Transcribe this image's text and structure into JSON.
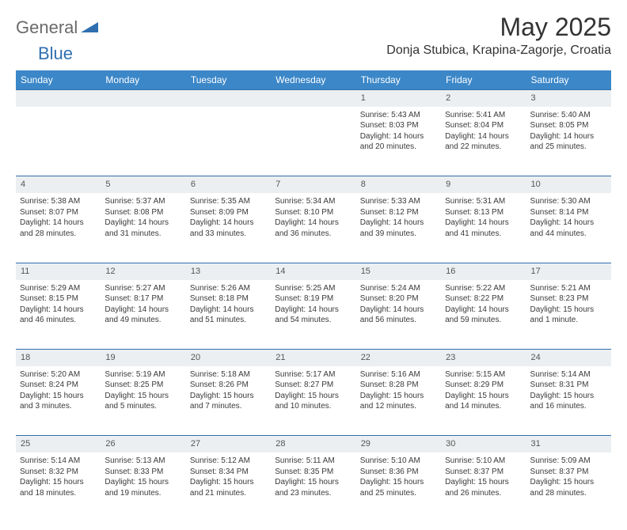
{
  "logo": {
    "textGray": "General",
    "textBlue": "Blue"
  },
  "title": "May 2025",
  "location": "Donja Stubica, Krapina-Zagorje, Croatia",
  "colors": {
    "header_bg": "#3b87c8",
    "header_text": "#ffffff",
    "daynum_bg": "#eceff1",
    "daynum_border": "#2f6fb0",
    "body_text": "#3a3a3a",
    "logo_gray": "#6a6a6a",
    "logo_blue": "#2f6fb0"
  },
  "weekdays": [
    "Sunday",
    "Monday",
    "Tuesday",
    "Wednesday",
    "Thursday",
    "Friday",
    "Saturday"
  ],
  "weeks": [
    {
      "nums": [
        "",
        "",
        "",
        "",
        "1",
        "2",
        "3"
      ],
      "cells": [
        null,
        null,
        null,
        null,
        {
          "sunrise": "Sunrise: 5:43 AM",
          "sunset": "Sunset: 8:03 PM",
          "day1": "Daylight: 14 hours",
          "day2": "and 20 minutes."
        },
        {
          "sunrise": "Sunrise: 5:41 AM",
          "sunset": "Sunset: 8:04 PM",
          "day1": "Daylight: 14 hours",
          "day2": "and 22 minutes."
        },
        {
          "sunrise": "Sunrise: 5:40 AM",
          "sunset": "Sunset: 8:05 PM",
          "day1": "Daylight: 14 hours",
          "day2": "and 25 minutes."
        }
      ]
    },
    {
      "nums": [
        "4",
        "5",
        "6",
        "7",
        "8",
        "9",
        "10"
      ],
      "cells": [
        {
          "sunrise": "Sunrise: 5:38 AM",
          "sunset": "Sunset: 8:07 PM",
          "day1": "Daylight: 14 hours",
          "day2": "and 28 minutes."
        },
        {
          "sunrise": "Sunrise: 5:37 AM",
          "sunset": "Sunset: 8:08 PM",
          "day1": "Daylight: 14 hours",
          "day2": "and 31 minutes."
        },
        {
          "sunrise": "Sunrise: 5:35 AM",
          "sunset": "Sunset: 8:09 PM",
          "day1": "Daylight: 14 hours",
          "day2": "and 33 minutes."
        },
        {
          "sunrise": "Sunrise: 5:34 AM",
          "sunset": "Sunset: 8:10 PM",
          "day1": "Daylight: 14 hours",
          "day2": "and 36 minutes."
        },
        {
          "sunrise": "Sunrise: 5:33 AM",
          "sunset": "Sunset: 8:12 PM",
          "day1": "Daylight: 14 hours",
          "day2": "and 39 minutes."
        },
        {
          "sunrise": "Sunrise: 5:31 AM",
          "sunset": "Sunset: 8:13 PM",
          "day1": "Daylight: 14 hours",
          "day2": "and 41 minutes."
        },
        {
          "sunrise": "Sunrise: 5:30 AM",
          "sunset": "Sunset: 8:14 PM",
          "day1": "Daylight: 14 hours",
          "day2": "and 44 minutes."
        }
      ]
    },
    {
      "nums": [
        "11",
        "12",
        "13",
        "14",
        "15",
        "16",
        "17"
      ],
      "cells": [
        {
          "sunrise": "Sunrise: 5:29 AM",
          "sunset": "Sunset: 8:15 PM",
          "day1": "Daylight: 14 hours",
          "day2": "and 46 minutes."
        },
        {
          "sunrise": "Sunrise: 5:27 AM",
          "sunset": "Sunset: 8:17 PM",
          "day1": "Daylight: 14 hours",
          "day2": "and 49 minutes."
        },
        {
          "sunrise": "Sunrise: 5:26 AM",
          "sunset": "Sunset: 8:18 PM",
          "day1": "Daylight: 14 hours",
          "day2": "and 51 minutes."
        },
        {
          "sunrise": "Sunrise: 5:25 AM",
          "sunset": "Sunset: 8:19 PM",
          "day1": "Daylight: 14 hours",
          "day2": "and 54 minutes."
        },
        {
          "sunrise": "Sunrise: 5:24 AM",
          "sunset": "Sunset: 8:20 PM",
          "day1": "Daylight: 14 hours",
          "day2": "and 56 minutes."
        },
        {
          "sunrise": "Sunrise: 5:22 AM",
          "sunset": "Sunset: 8:22 PM",
          "day1": "Daylight: 14 hours",
          "day2": "and 59 minutes."
        },
        {
          "sunrise": "Sunrise: 5:21 AM",
          "sunset": "Sunset: 8:23 PM",
          "day1": "Daylight: 15 hours",
          "day2": "and 1 minute."
        }
      ]
    },
    {
      "nums": [
        "18",
        "19",
        "20",
        "21",
        "22",
        "23",
        "24"
      ],
      "cells": [
        {
          "sunrise": "Sunrise: 5:20 AM",
          "sunset": "Sunset: 8:24 PM",
          "day1": "Daylight: 15 hours",
          "day2": "and 3 minutes."
        },
        {
          "sunrise": "Sunrise: 5:19 AM",
          "sunset": "Sunset: 8:25 PM",
          "day1": "Daylight: 15 hours",
          "day2": "and 5 minutes."
        },
        {
          "sunrise": "Sunrise: 5:18 AM",
          "sunset": "Sunset: 8:26 PM",
          "day1": "Daylight: 15 hours",
          "day2": "and 7 minutes."
        },
        {
          "sunrise": "Sunrise: 5:17 AM",
          "sunset": "Sunset: 8:27 PM",
          "day1": "Daylight: 15 hours",
          "day2": "and 10 minutes."
        },
        {
          "sunrise": "Sunrise: 5:16 AM",
          "sunset": "Sunset: 8:28 PM",
          "day1": "Daylight: 15 hours",
          "day2": "and 12 minutes."
        },
        {
          "sunrise": "Sunrise: 5:15 AM",
          "sunset": "Sunset: 8:29 PM",
          "day1": "Daylight: 15 hours",
          "day2": "and 14 minutes."
        },
        {
          "sunrise": "Sunrise: 5:14 AM",
          "sunset": "Sunset: 8:31 PM",
          "day1": "Daylight: 15 hours",
          "day2": "and 16 minutes."
        }
      ]
    },
    {
      "nums": [
        "25",
        "26",
        "27",
        "28",
        "29",
        "30",
        "31"
      ],
      "cells": [
        {
          "sunrise": "Sunrise: 5:14 AM",
          "sunset": "Sunset: 8:32 PM",
          "day1": "Daylight: 15 hours",
          "day2": "and 18 minutes."
        },
        {
          "sunrise": "Sunrise: 5:13 AM",
          "sunset": "Sunset: 8:33 PM",
          "day1": "Daylight: 15 hours",
          "day2": "and 19 minutes."
        },
        {
          "sunrise": "Sunrise: 5:12 AM",
          "sunset": "Sunset: 8:34 PM",
          "day1": "Daylight: 15 hours",
          "day2": "and 21 minutes."
        },
        {
          "sunrise": "Sunrise: 5:11 AM",
          "sunset": "Sunset: 8:35 PM",
          "day1": "Daylight: 15 hours",
          "day2": "and 23 minutes."
        },
        {
          "sunrise": "Sunrise: 5:10 AM",
          "sunset": "Sunset: 8:36 PM",
          "day1": "Daylight: 15 hours",
          "day2": "and 25 minutes."
        },
        {
          "sunrise": "Sunrise: 5:10 AM",
          "sunset": "Sunset: 8:37 PM",
          "day1": "Daylight: 15 hours",
          "day2": "and 26 minutes."
        },
        {
          "sunrise": "Sunrise: 5:09 AM",
          "sunset": "Sunset: 8:37 PM",
          "day1": "Daylight: 15 hours",
          "day2": "and 28 minutes."
        }
      ]
    }
  ]
}
